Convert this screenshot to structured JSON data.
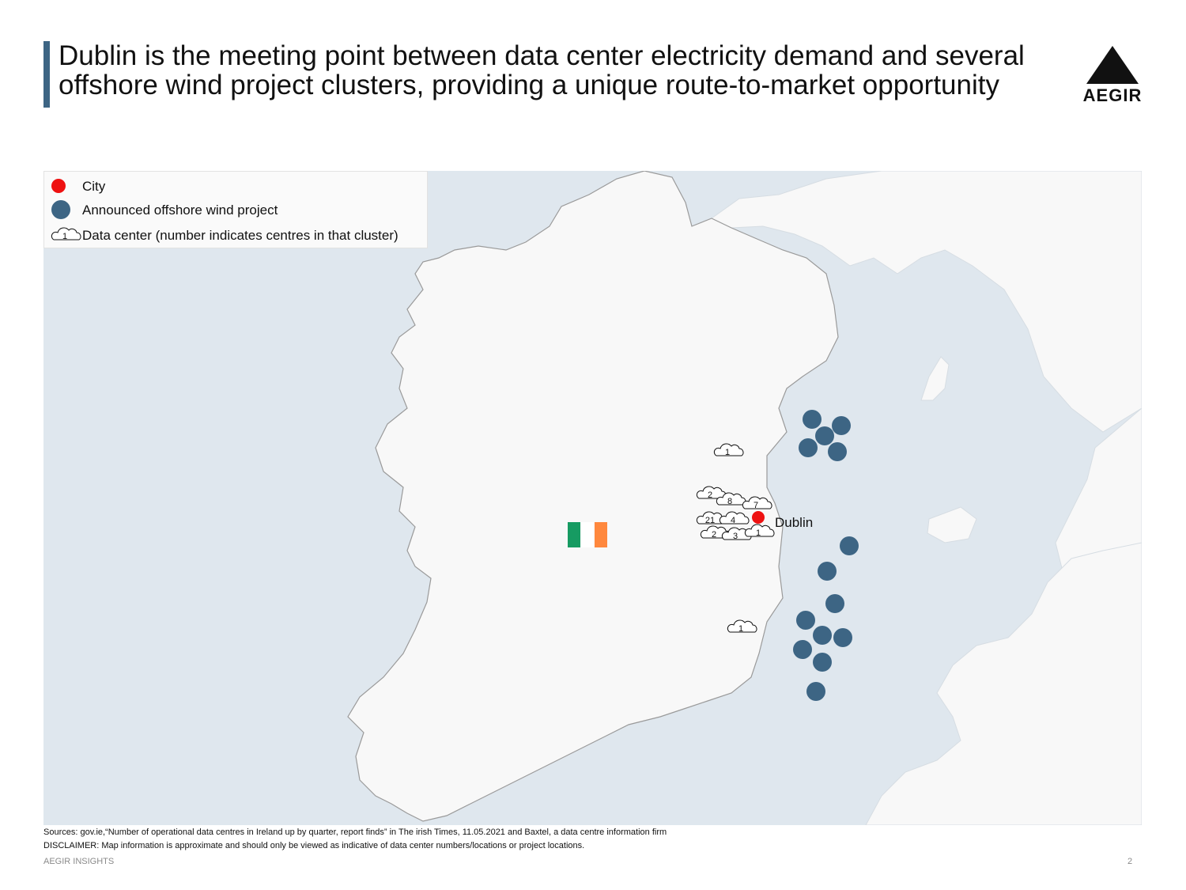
{
  "header": {
    "title_line1": "Dublin is the meeting point between data center electricity demand and several",
    "title_line2": "offshore wind project clusters, providing a unique route-to-market opportunity",
    "accent_color": "#3d6584"
  },
  "logo": {
    "text": "AEGIR",
    "icon": "triangle-logo-icon"
  },
  "legend": {
    "city": "City",
    "wind": "Announced offshore wind project",
    "datacenter": "Data center (number indicates centres in that cluster)",
    "datacenter_sample": "1"
  },
  "colors": {
    "sea": "#dfe7ee",
    "land": "#f8f8f8",
    "coast": "#9a9a9a",
    "city": "#ee1111",
    "wind": "#3d6584",
    "flag_green": "#169b62",
    "flag_orange": "#ff883e"
  },
  "map": {
    "city_label": "Dublin",
    "flag_icon": "ireland-flag-icon",
    "data_center_counts": [
      "1",
      "2",
      "8",
      "7",
      "21",
      "4",
      "2",
      "3",
      "1",
      "1"
    ],
    "wind_projects_north": 5,
    "wind_projects_south": 10
  },
  "footer": {
    "sources": "Sources: gov.ie,“Number of operational data centres in Ireland up by quarter, report finds” in The irish Times, 11.05.2021 and Baxtel, a data centre information firm",
    "disclaimer": "DISCLAIMER: Map information is approximate and should only be viewed as indicative of data center numbers/locations or project locations.",
    "brand": "AEGIR INSIGHTS",
    "page": "2"
  }
}
